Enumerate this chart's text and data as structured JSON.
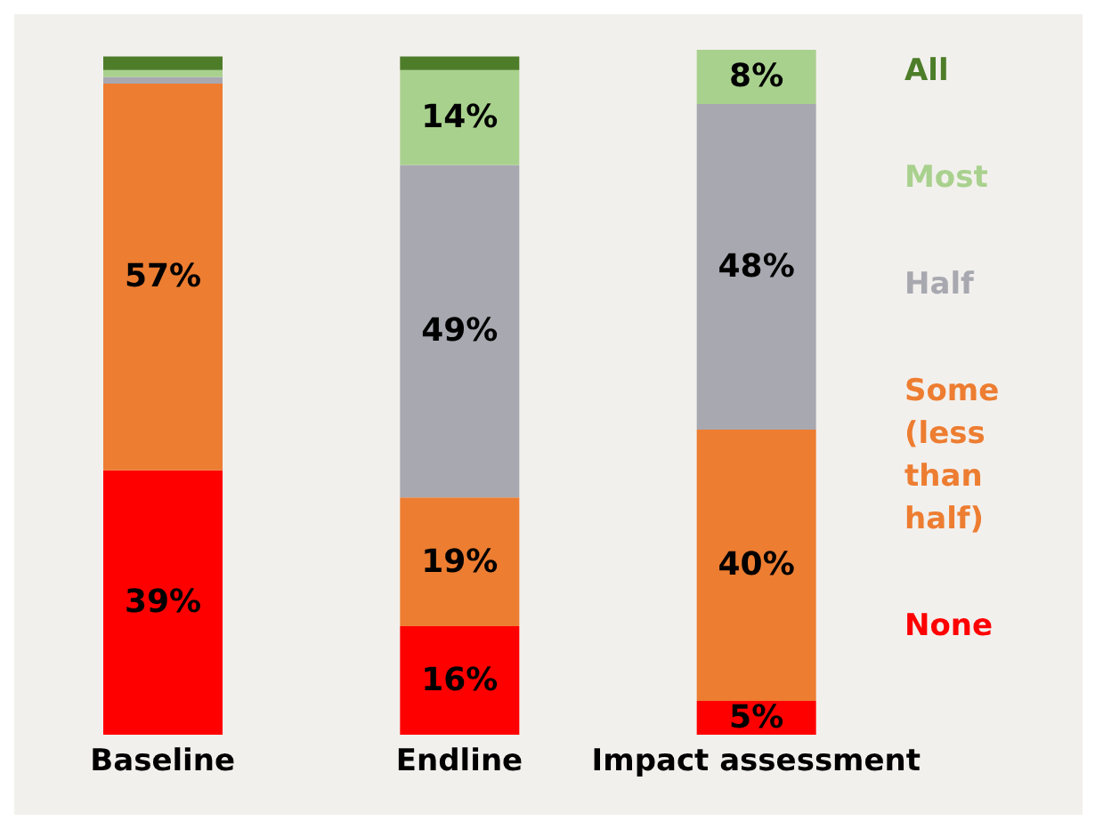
{
  "chart_data": {
    "type": "bar",
    "stacked": true,
    "categories": [
      "Baseline",
      "Endline",
      "Impact assessment"
    ],
    "series": [
      {
        "name": "None",
        "color": "#ff0000",
        "values": [
          39,
          16,
          5
        ],
        "value_labels": [
          "39%",
          "16%",
          "5%"
        ]
      },
      {
        "name": "Some (less than half)",
        "color": "#ed7d31",
        "values": [
          57,
          19,
          40
        ],
        "value_labels": [
          "57%",
          "19%",
          "40%"
        ]
      },
      {
        "name": "Half",
        "color": "#a8a8b0",
        "values": [
          1,
          49,
          48
        ],
        "value_labels": [
          null,
          "49%",
          "48%"
        ]
      },
      {
        "name": "Most",
        "color": "#a9d18e",
        "values": [
          1,
          14,
          8
        ],
        "value_labels": [
          null,
          "14%",
          "8%"
        ]
      },
      {
        "name": "All",
        "color": "#4e7d2a",
        "values": [
          2,
          2,
          0
        ],
        "value_labels": [
          null,
          null,
          null
        ]
      }
    ],
    "legend": "right",
    "grid": false
  }
}
